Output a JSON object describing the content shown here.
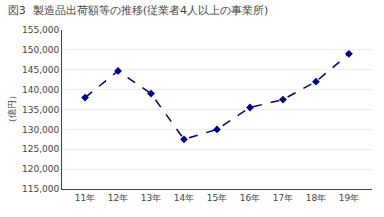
{
  "chart_data": {
    "type": "line",
    "title": "図3  製造品出荷額等の推移(従業者4人以上の事業所)",
    "ylabel": "（億円）",
    "x": [
      11,
      12,
      13,
      14,
      15,
      16,
      17,
      18,
      19
    ],
    "values": [
      138000,
      144700,
      139000,
      127500,
      130000,
      135500,
      137500,
      142000,
      149000
    ],
    "color": "#000080",
    "marker": "diamond",
    "line_style": "dashed",
    "xlim": [
      10.3,
      19.7
    ],
    "xticks": [
      {
        "value": 11,
        "label": "11年"
      },
      {
        "value": 12,
        "label": "12年"
      },
      {
        "value": 13,
        "label": "13年"
      },
      {
        "value": 14,
        "label": "14年"
      },
      {
        "value": 15,
        "label": "15年"
      },
      {
        "value": 16,
        "label": "16年"
      },
      {
        "value": 17,
        "label": "17年"
      },
      {
        "value": 18,
        "label": "18年"
      },
      {
        "value": 19,
        "label": "19年"
      }
    ],
    "ylim": [
      115000,
      155000
    ],
    "yticks": [
      {
        "value": 115000,
        "label": "115,000"
      },
      {
        "value": 120000,
        "label": "120,000"
      },
      {
        "value": 125000,
        "label": "125,000"
      },
      {
        "value": 130000,
        "label": "130,000"
      },
      {
        "value": 135000,
        "label": "135,000"
      },
      {
        "value": 140000,
        "label": "140,000"
      },
      {
        "value": 145000,
        "label": "145,000"
      },
      {
        "value": 150000,
        "label": "150,000"
      },
      {
        "value": 155000,
        "label": "155,000"
      }
    ],
    "grid": true
  }
}
